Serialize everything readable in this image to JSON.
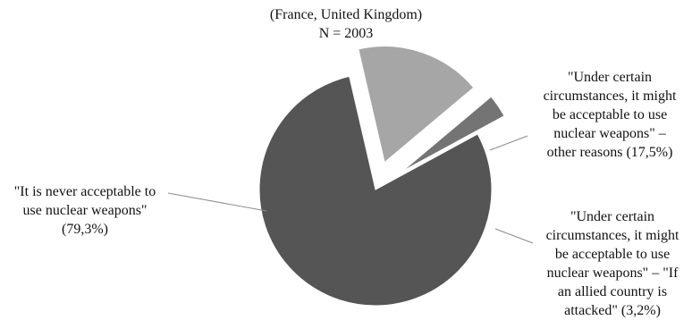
{
  "chart_data": {
    "type": "pie",
    "subtitle_lines": [
      "(France, United Kingdom)",
      "N = 2003"
    ],
    "slices": [
      {
        "label_lines": [
          "\"It is never acceptable to",
          "use nuclear weapons\"",
          "(79,3%)"
        ],
        "value": 79.3,
        "color": "#555555"
      },
      {
        "label_lines": [
          "\"Under certain",
          "circumstances, it might",
          "be acceptable to use",
          "nuclear weapons\" –",
          "other reasons (17,5%)"
        ],
        "value": 17.5,
        "color": "#a6a6a6"
      },
      {
        "label_lines": [
          "\"Under certain",
          "circumstances, it might",
          "be acceptable to use",
          "nuclear weapons\" – \"If",
          "an allied country is",
          "attacked\" (3,2%)"
        ],
        "value": 3.2,
        "color": "#747474"
      }
    ]
  }
}
